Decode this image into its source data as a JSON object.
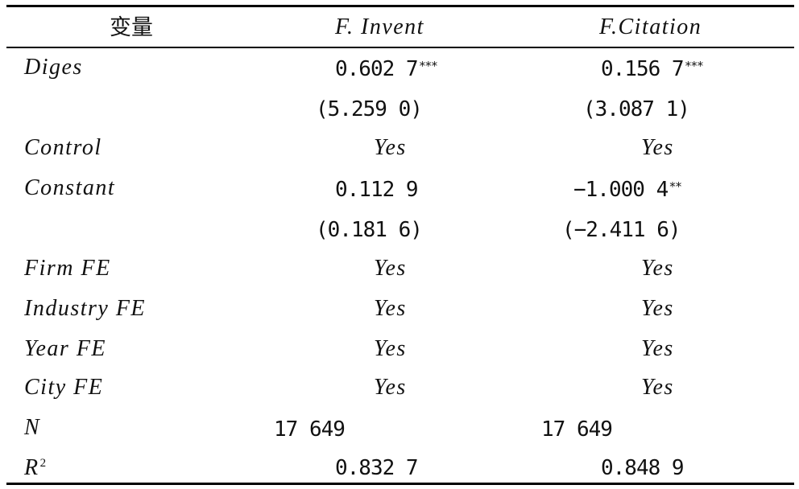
{
  "header": {
    "variable": "变量",
    "col1": "F. Invent",
    "col2": "F.Citation"
  },
  "rows": {
    "diges": {
      "label": "Diges",
      "v1": "0.602 7",
      "s1": "***",
      "v2": "0.156 7",
      "s2": "***"
    },
    "diges_t": {
      "v1": "(5.259 0)",
      "v2": "(3.087 1)"
    },
    "control": {
      "label": "Control",
      "v1": "Yes",
      "v2": "Yes"
    },
    "constant": {
      "label": "Constant",
      "v1": "0.112 9",
      "v2": "−1.000 4",
      "s2": "**"
    },
    "constant_t": {
      "v1": "(0.181 6)",
      "v2": "(−2.411 6)"
    },
    "firm_fe": {
      "label": "Firm FE",
      "v1": "Yes",
      "v2": "Yes"
    },
    "industry_fe": {
      "label": "Industry FE",
      "v1": "Yes",
      "v2": "Yes"
    },
    "year_fe": {
      "label": "Year FE",
      "v1": "Yes",
      "v2": "Yes"
    },
    "city_fe": {
      "label": "City FE",
      "v1": "Yes",
      "v2": "Yes"
    },
    "n": {
      "label": "N",
      "v1": "17 649",
      "v2": "17 649"
    },
    "r2": {
      "label": "R",
      "sup": "2",
      "v1": "0.832 7",
      "v2": "0.848 9"
    }
  }
}
